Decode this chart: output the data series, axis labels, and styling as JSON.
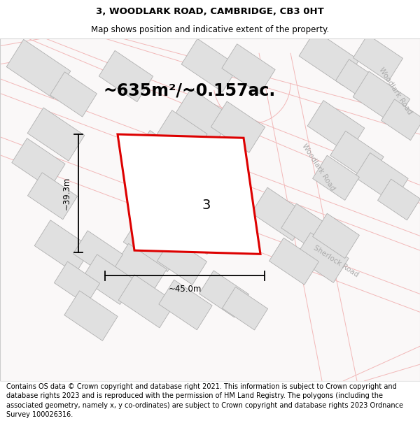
{
  "title": "3, WOODLARK ROAD, CAMBRIDGE, CB3 0HT",
  "subtitle": "Map shows position and indicative extent of the property.",
  "area_label": "~635m²/~0.157ac.",
  "width_label": "~45.0m",
  "height_label": "~39.3m",
  "plot_number": "3",
  "footer": "Contains OS data © Crown copyright and database right 2021. This information is subject to Crown copyright and database rights 2023 and is reproduced with the permission of HM Land Registry. The polygons (including the associated geometry, namely x, y co-ordinates) are subject to Crown copyright and database rights 2023 Ordnance Survey 100026316.",
  "bg_color": "#f8f4f4",
  "map_bg": "#ffffff",
  "red_outline": "#dd0000",
  "road_edge_color": "#f0b0b0",
  "building_color": "#e0e0e0",
  "building_edge": "#b0b0b0",
  "road_label_color": "#aaaaaa",
  "title_fontsize": 9.5,
  "subtitle_fontsize": 8.5,
  "area_label_fontsize": 17,
  "plot_number_fontsize": 14,
  "footer_fontsize": 7.0,
  "dim_fontsize": 8.5,
  "road_lw": 0.8,
  "building_lw": 0.6
}
